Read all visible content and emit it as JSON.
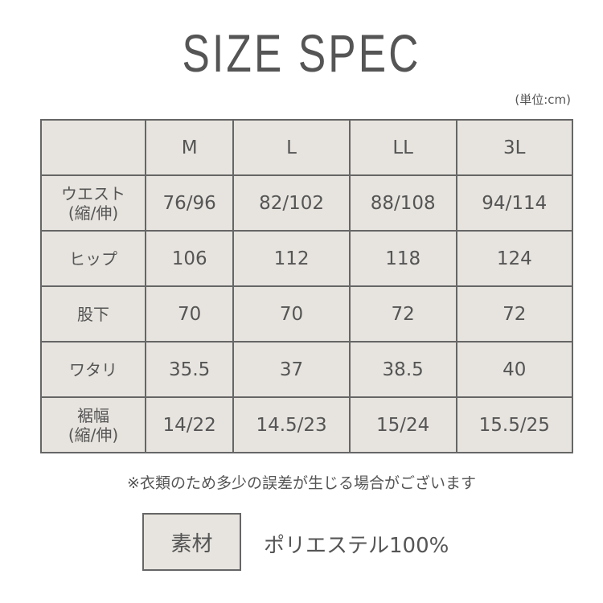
{
  "title": "SIZE SPEC",
  "unit": "(単位:cm)",
  "table": {
    "headers": [
      "",
      "M",
      "L",
      "LL",
      "3L"
    ],
    "rows": [
      {
        "label": [
          "ウエスト",
          "(縮/伸)"
        ],
        "values": [
          "76/96",
          "82/102",
          "88/108",
          "94/114"
        ]
      },
      {
        "label": [
          "ヒップ"
        ],
        "values": [
          "106",
          "112",
          "118",
          "124"
        ]
      },
      {
        "label": [
          "股下"
        ],
        "values": [
          "70",
          "70",
          "72",
          "72"
        ]
      },
      {
        "label": [
          "ワタリ"
        ],
        "values": [
          "35.5",
          "37",
          "38.5",
          "40"
        ]
      },
      {
        "label": [
          "裾幅",
          "(縮/伸)"
        ],
        "values": [
          "14/22",
          "14.5/23",
          "15/24",
          "15.5/25"
        ]
      }
    ]
  },
  "note": "※衣類のため多少の誤差が生じる場合がございます",
  "material": {
    "label": "素材",
    "value": "ポリエステル100%"
  }
}
